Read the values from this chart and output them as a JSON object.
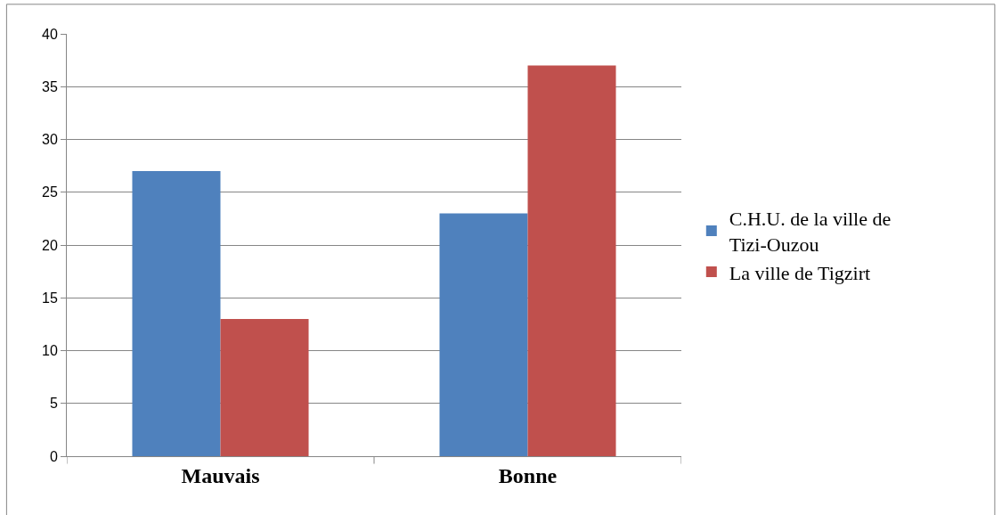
{
  "chart_data": {
    "type": "bar",
    "categories": [
      "Mauvais",
      "Bonne"
    ],
    "series": [
      {
        "name": "C.H.U. de la ville de Tizi-Ouzou",
        "color": "#4f81bd",
        "values": [
          27,
          23
        ]
      },
      {
        "name": "La ville de Tigzirt",
        "color": "#c0504d",
        "values": [
          13,
          37
        ]
      }
    ],
    "ylim": [
      0,
      40
    ],
    "yticks": [
      0,
      5,
      10,
      15,
      20,
      25,
      30,
      35,
      40
    ],
    "grid": "y",
    "legend": "right"
  }
}
